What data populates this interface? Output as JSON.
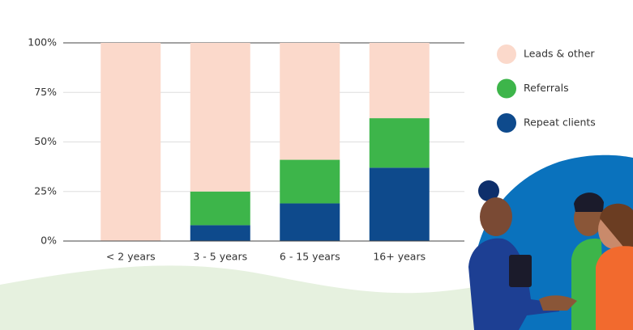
{
  "chart_data": {
    "type": "stacked-bar",
    "categories": [
      "< 2 years",
      "3 - 5 years",
      "6 - 15 years",
      "16+ years"
    ],
    "series": [
      {
        "name": "Leads & other",
        "color": "#fbd9cb",
        "values": [
          100,
          75,
          59,
          38
        ]
      },
      {
        "name": "Referrals",
        "color": "#3db54a",
        "values": [
          0,
          17,
          22,
          25
        ]
      },
      {
        "name": "Repeat clients",
        "color": "#0e4a8c",
        "values": [
          0,
          8,
          19,
          37
        ]
      }
    ],
    "ylim": [
      0,
      100
    ],
    "yticks": [
      {
        "value": 0,
        "label": "0%"
      },
      {
        "value": 25,
        "label": "25%"
      },
      {
        "value": 50,
        "label": "50%"
      },
      {
        "value": 75,
        "label": "75%"
      },
      {
        "value": 100,
        "label": "100%"
      }
    ],
    "grid": true,
    "legend": "right"
  }
}
